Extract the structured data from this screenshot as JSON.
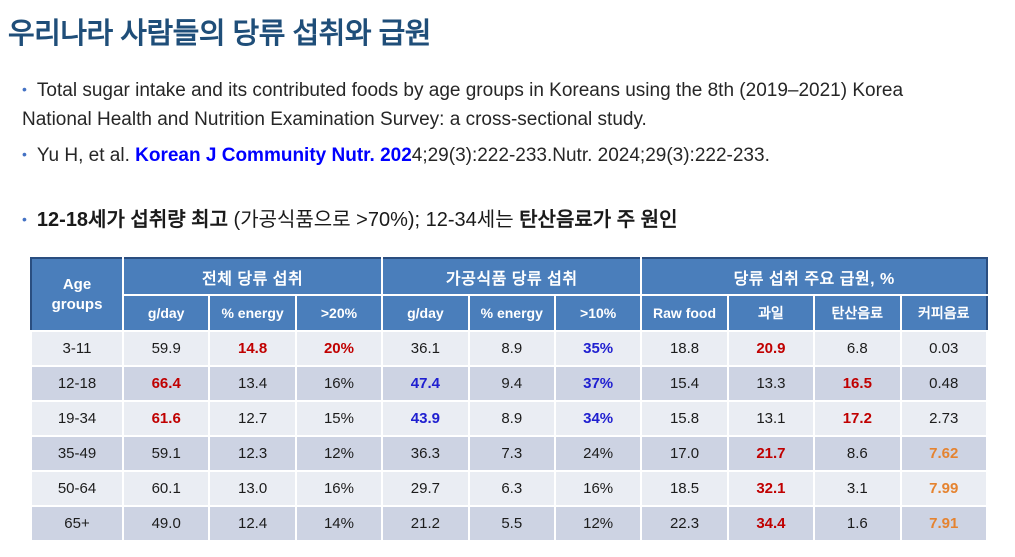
{
  "slide": {
    "title": "우리나라 사람들의 당류 섭취와 급원"
  },
  "bullets": {
    "marker": "•",
    "b1_text": "Total sugar intake and its contributed foods by age groups in Koreans using the 8th (2019–2021) Korea National Health and Nutrition Examination Survey: a cross-sectional study.",
    "b2_prefix": "Yu H, et al. ",
    "b2_citation": "Korean J Community Nutr. 202",
    "b2_suffix": "4;29(3):222-233.Nutr. 2024;29(3):222-233.",
    "b3_bold1": "12-18세가 섭취량 최고",
    "b3_regular": " (가공식품으로 >70%); 12-34세는 ",
    "b3_bold2": "탄산음료가 주 원인"
  },
  "table": {
    "corner_header": "Age groups",
    "groups": [
      {
        "label": "전체 당류 섭취",
        "cols": [
          "g/day",
          "% energy",
          ">20%"
        ]
      },
      {
        "label": "가공식품 당류 섭취",
        "cols": [
          "g/day",
          "% energy",
          ">10%"
        ]
      },
      {
        "label": "당류 섭취 주요 급원, %",
        "cols": [
          "Raw food",
          "과일",
          "탄산음료",
          "커피음료"
        ]
      }
    ],
    "rows": [
      {
        "age": "3-11",
        "cells": [
          {
            "v": "59.9",
            "c": "k"
          },
          {
            "v": "14.8",
            "c": "r"
          },
          {
            "v": "20%",
            "c": "r"
          },
          {
            "v": "36.1",
            "c": "k"
          },
          {
            "v": "8.9",
            "c": "k"
          },
          {
            "v": "35%",
            "c": "b"
          },
          {
            "v": "18.8",
            "c": "k"
          },
          {
            "v": "20.9",
            "c": "r"
          },
          {
            "v": "6.8",
            "c": "k"
          },
          {
            "v": "0.03",
            "c": "k"
          }
        ]
      },
      {
        "age": "12-18",
        "cells": [
          {
            "v": "66.4",
            "c": "r"
          },
          {
            "v": "13.4",
            "c": "k"
          },
          {
            "v": "16%",
            "c": "k"
          },
          {
            "v": "47.4",
            "c": "b"
          },
          {
            "v": "9.4",
            "c": "k"
          },
          {
            "v": "37%",
            "c": "b"
          },
          {
            "v": "15.4",
            "c": "k"
          },
          {
            "v": "13.3",
            "c": "k"
          },
          {
            "v": "16.5",
            "c": "r"
          },
          {
            "v": "0.48",
            "c": "k"
          }
        ]
      },
      {
        "age": "19-34",
        "cells": [
          {
            "v": "61.6",
            "c": "r"
          },
          {
            "v": "12.7",
            "c": "k"
          },
          {
            "v": "15%",
            "c": "k"
          },
          {
            "v": "43.9",
            "c": "b"
          },
          {
            "v": "8.9",
            "c": "k"
          },
          {
            "v": "34%",
            "c": "b"
          },
          {
            "v": "15.8",
            "c": "k"
          },
          {
            "v": "13.1",
            "c": "k"
          },
          {
            "v": "17.2",
            "c": "r"
          },
          {
            "v": "2.73",
            "c": "k"
          }
        ]
      },
      {
        "age": "35-49",
        "cells": [
          {
            "v": "59.1",
            "c": "k"
          },
          {
            "v": "12.3",
            "c": "k"
          },
          {
            "v": "12%",
            "c": "k"
          },
          {
            "v": "36.3",
            "c": "k"
          },
          {
            "v": "7.3",
            "c": "k"
          },
          {
            "v": "24%",
            "c": "k"
          },
          {
            "v": "17.0",
            "c": "k"
          },
          {
            "v": "21.7",
            "c": "r"
          },
          {
            "v": "8.6",
            "c": "k"
          },
          {
            "v": "7.62",
            "c": "o"
          }
        ]
      },
      {
        "age": "50-64",
        "cells": [
          {
            "v": "60.1",
            "c": "k"
          },
          {
            "v": "13.0",
            "c": "k"
          },
          {
            "v": "16%",
            "c": "k"
          },
          {
            "v": "29.7",
            "c": "k"
          },
          {
            "v": "6.3",
            "c": "k"
          },
          {
            "v": "16%",
            "c": "k"
          },
          {
            "v": "18.5",
            "c": "k"
          },
          {
            "v": "32.1",
            "c": "r"
          },
          {
            "v": "3.1",
            "c": "k"
          },
          {
            "v": "7.99",
            "c": "o"
          }
        ]
      },
      {
        "age": "65+",
        "cells": [
          {
            "v": "49.0",
            "c": "k"
          },
          {
            "v": "12.4",
            "c": "k"
          },
          {
            "v": "14%",
            "c": "k"
          },
          {
            "v": "21.2",
            "c": "k"
          },
          {
            "v": "5.5",
            "c": "k"
          },
          {
            "v": "12%",
            "c": "k"
          },
          {
            "v": "22.3",
            "c": "k"
          },
          {
            "v": "34.4",
            "c": "r"
          },
          {
            "v": "1.6",
            "c": "k"
          },
          {
            "v": "7.91",
            "c": "o"
          }
        ]
      }
    ]
  },
  "colors": {
    "title": "#1F4E79",
    "bullet_marker": "#4472C4",
    "citation_blue": "#0000FF",
    "header_fill": "#4A7EBB",
    "header_edge": "#2A4E80",
    "row_light": "#EAEDF3",
    "row_dark": "#CDD3E3",
    "value_red": "#C00000",
    "value_blue": "#1F1FD0",
    "value_orange": "#E58330"
  }
}
